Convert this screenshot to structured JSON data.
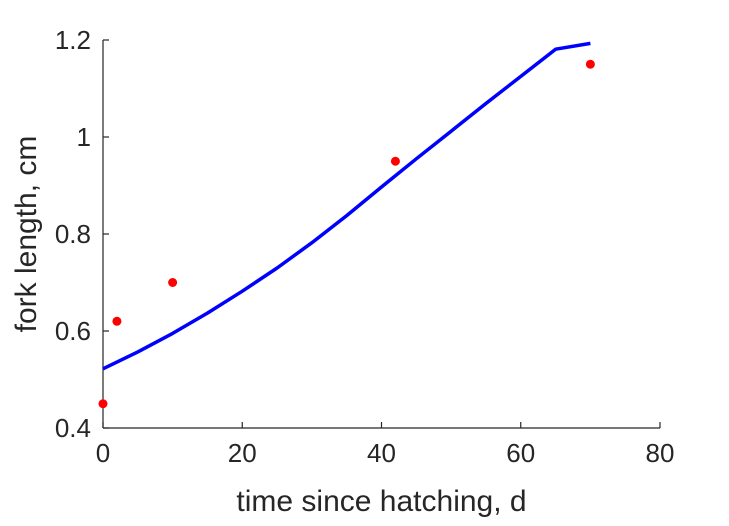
{
  "chart_data": {
    "type": "scatter",
    "title": "",
    "xlabel": "time since hatching, d",
    "ylabel": "fork length, cm",
    "xlim": [
      0,
      80
    ],
    "ylim": [
      0.4,
      1.2
    ],
    "xticks": [
      0,
      20,
      40,
      60,
      80
    ],
    "xtick_labels": [
      "0",
      "20",
      "40",
      "60",
      "80"
    ],
    "yticks": [
      0.4,
      0.6,
      0.8,
      1.0,
      1.2
    ],
    "ytick_labels": [
      "0.4",
      "0.6",
      "0.8",
      "1",
      "1.2"
    ],
    "grid": false,
    "series": [
      {
        "kind": "points",
        "color": "#ff0000",
        "x": [
          0,
          2,
          10,
          42,
          70
        ],
        "y": [
          0.45,
          0.62,
          0.7,
          0.95,
          1.15
        ]
      },
      {
        "kind": "line",
        "color": "#0000ff",
        "x": [
          0,
          5,
          10,
          15,
          20,
          25,
          30,
          35,
          40,
          45,
          50,
          55,
          60,
          65,
          70
        ],
        "y": [
          0.522,
          0.557,
          0.595,
          0.637,
          0.682,
          0.73,
          0.782,
          0.838,
          0.897,
          0.955,
          1.012,
          1.069,
          1.125,
          1.181,
          1.193
        ]
      }
    ]
  }
}
